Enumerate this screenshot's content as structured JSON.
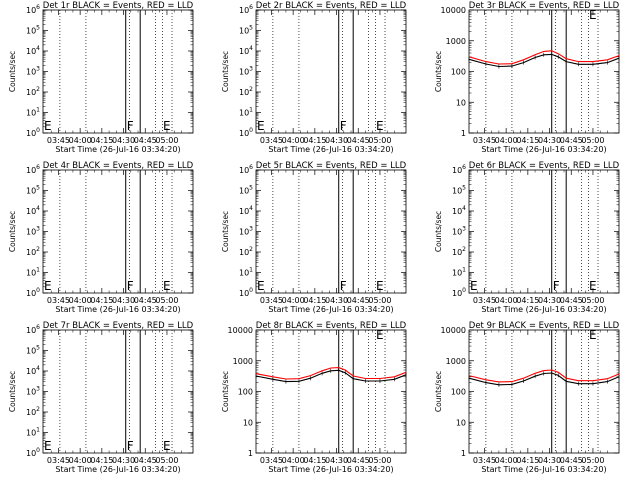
{
  "ylabel": "Counts/sec",
  "xlabel": "Start Time (26-Jul-16 03:34:20)",
  "xticks": [
    "03:45",
    "04:00",
    "04:15",
    "04:30",
    "04:45",
    "05:00"
  ],
  "xtick_minutes": [
    225,
    240,
    255,
    270,
    285,
    300
  ],
  "x_range_minutes": [
    214.33,
    318
  ],
  "flag_line_minutes": [
    271.5,
    281.5
  ],
  "dotted_line_minutes": [
    226,
    244,
    274,
    292,
    297,
    303.5
  ],
  "flag_labels": {
    "F": "F",
    "E": "E"
  },
  "flag_label_minutes": {
    "F": 271.5,
    "E": 298
  },
  "colors": {
    "events": "#000000",
    "lld": "#ff0000"
  },
  "series_names": {
    "events": "BLACK = Events",
    "lld": "RED = LLD"
  },
  "chart_data": [
    {
      "type": "line",
      "title": "Det 1r BLACK = Events, RED = LLD",
      "yscale": "log",
      "ylim": [
        1,
        1000000
      ],
      "yticks": [
        {
          "v": 1,
          "b": "10",
          "e": "0"
        },
        {
          "v": 10,
          "b": "10",
          "e": "1"
        },
        {
          "v": 100,
          "b": "10",
          "e": "2"
        },
        {
          "v": 1000,
          "b": "10",
          "e": "3"
        },
        {
          "v": 10000,
          "b": "10",
          "e": "4"
        },
        {
          "v": 100000,
          "b": "10",
          "e": "5"
        },
        {
          "v": 1000000,
          "b": "10",
          "e": "6"
        }
      ],
      "flags": [
        "E",
        "F",
        "E"
      ],
      "series": []
    },
    {
      "type": "line",
      "title": "Det 2r BLACK = Events, RED = LLD",
      "yscale": "log",
      "ylim": [
        1,
        1000000
      ],
      "yticks": [
        {
          "v": 1,
          "b": "10",
          "e": "0"
        },
        {
          "v": 10,
          "b": "10",
          "e": "1"
        },
        {
          "v": 100,
          "b": "10",
          "e": "2"
        },
        {
          "v": 1000,
          "b": "10",
          "e": "3"
        },
        {
          "v": 10000,
          "b": "10",
          "e": "4"
        },
        {
          "v": 100000,
          "b": "10",
          "e": "5"
        },
        {
          "v": 1000000,
          "b": "10",
          "e": "6"
        }
      ],
      "flags": [
        "E",
        "F",
        "E"
      ],
      "series": []
    },
    {
      "type": "line",
      "title": "Det 3r BLACK = Events, RED = LLD",
      "yscale": "log",
      "ylim": [
        1,
        10000
      ],
      "yticks": [
        {
          "v": 1,
          "t": "1"
        },
        {
          "v": 10,
          "t": "10"
        },
        {
          "v": 100,
          "t": "100"
        },
        {
          "v": 1000,
          "t": "1000"
        },
        {
          "v": 10000,
          "t": "10000"
        }
      ],
      "flags": [
        "E"
      ],
      "series": [
        {
          "key": "lld",
          "points": [
            [
              214.33,
              300
            ],
            [
              226,
              210
            ],
            [
              235,
              175
            ],
            [
              244,
              180
            ],
            [
              252,
              240
            ],
            [
              260,
              350
            ],
            [
              266,
              450
            ],
            [
              271.5,
              470
            ],
            [
              276,
              380
            ],
            [
              281.5,
              260
            ],
            [
              290,
              210
            ],
            [
              300,
              210
            ],
            [
              310,
              240
            ],
            [
              318,
              330
            ]
          ]
        },
        {
          "key": "events",
          "points": [
            [
              214.33,
              250
            ],
            [
              226,
              175
            ],
            [
              235,
              145
            ],
            [
              244,
              150
            ],
            [
              252,
              195
            ],
            [
              260,
              285
            ],
            [
              266,
              350
            ],
            [
              271.5,
              360
            ],
            [
              276,
              300
            ],
            [
              281.5,
              210
            ],
            [
              290,
              172
            ],
            [
              300,
              172
            ],
            [
              310,
              195
            ],
            [
              318,
              270
            ]
          ]
        }
      ]
    },
    {
      "type": "line",
      "title": "Det 4r BLACK = Events, RED = LLD",
      "yscale": "log",
      "ylim": [
        1,
        1000000
      ],
      "yticks": [
        {
          "v": 1,
          "b": "10",
          "e": "0"
        },
        {
          "v": 10,
          "b": "10",
          "e": "1"
        },
        {
          "v": 100,
          "b": "10",
          "e": "2"
        },
        {
          "v": 1000,
          "b": "10",
          "e": "3"
        },
        {
          "v": 10000,
          "b": "10",
          "e": "4"
        },
        {
          "v": 100000,
          "b": "10",
          "e": "5"
        },
        {
          "v": 1000000,
          "b": "10",
          "e": "6"
        }
      ],
      "flags": [
        "E",
        "F",
        "E"
      ],
      "series": []
    },
    {
      "type": "line",
      "title": "Det 5r BLACK = Events, RED = LLD",
      "yscale": "log",
      "ylim": [
        1,
        1000000
      ],
      "yticks": [
        {
          "v": 1,
          "b": "10",
          "e": "0"
        },
        {
          "v": 10,
          "b": "10",
          "e": "1"
        },
        {
          "v": 100,
          "b": "10",
          "e": "2"
        },
        {
          "v": 1000,
          "b": "10",
          "e": "3"
        },
        {
          "v": 10000,
          "b": "10",
          "e": "4"
        },
        {
          "v": 100000,
          "b": "10",
          "e": "5"
        },
        {
          "v": 1000000,
          "b": "10",
          "e": "6"
        }
      ],
      "flags": [
        "E",
        "F",
        "E"
      ],
      "series": []
    },
    {
      "type": "line",
      "title": "Det 6r BLACK = Events, RED = LLD",
      "yscale": "log",
      "ylim": [
        1,
        1000000
      ],
      "yticks": [
        {
          "v": 1,
          "b": "10",
          "e": "0"
        },
        {
          "v": 10,
          "b": "10",
          "e": "1"
        },
        {
          "v": 100,
          "b": "10",
          "e": "2"
        },
        {
          "v": 1000,
          "b": "10",
          "e": "3"
        },
        {
          "v": 10000,
          "b": "10",
          "e": "4"
        },
        {
          "v": 100000,
          "b": "10",
          "e": "5"
        },
        {
          "v": 1000000,
          "b": "10",
          "e": "6"
        }
      ],
      "flags": [
        "E",
        "F",
        "E"
      ],
      "series": []
    },
    {
      "type": "line",
      "title": "Det 7r BLACK = Events, RED = LLD",
      "yscale": "log",
      "ylim": [
        1,
        1000000
      ],
      "yticks": [
        {
          "v": 1,
          "b": "10",
          "e": "0"
        },
        {
          "v": 10,
          "b": "10",
          "e": "1"
        },
        {
          "v": 100,
          "b": "10",
          "e": "2"
        },
        {
          "v": 1000,
          "b": "10",
          "e": "3"
        },
        {
          "v": 10000,
          "b": "10",
          "e": "4"
        },
        {
          "v": 100000,
          "b": "10",
          "e": "5"
        },
        {
          "v": 1000000,
          "b": "10",
          "e": "6"
        }
      ],
      "flags": [
        "E",
        "F",
        "E"
      ],
      "series": []
    },
    {
      "type": "line",
      "title": "Det 8r BLACK = Events, RED = LLD",
      "yscale": "log",
      "ylim": [
        1,
        10000
      ],
      "yticks": [
        {
          "v": 1,
          "t": "1"
        },
        {
          "v": 10,
          "t": "10"
        },
        {
          "v": 100,
          "t": "100"
        },
        {
          "v": 1000,
          "t": "1000"
        },
        {
          "v": 10000,
          "t": "10000"
        }
      ],
      "flags": [
        "E"
      ],
      "series": [
        {
          "key": "lld",
          "points": [
            [
              214.33,
              380
            ],
            [
              226,
              300
            ],
            [
              235,
              255
            ],
            [
              244,
              260
            ],
            [
              252,
              330
            ],
            [
              260,
              470
            ],
            [
              266,
              580
            ],
            [
              271.5,
              600
            ],
            [
              276,
              500
            ],
            [
              281.5,
              320
            ],
            [
              290,
              265
            ],
            [
              300,
              265
            ],
            [
              310,
              300
            ],
            [
              318,
              420
            ]
          ]
        },
        {
          "key": "events",
          "points": [
            [
              214.33,
              320
            ],
            [
              226,
              250
            ],
            [
              235,
              210
            ],
            [
              244,
              215
            ],
            [
              252,
              270
            ],
            [
              260,
              390
            ],
            [
              266,
              470
            ],
            [
              271.5,
              490
            ],
            [
              276,
              410
            ],
            [
              281.5,
              260
            ],
            [
              290,
              220
            ],
            [
              300,
              220
            ],
            [
              310,
              250
            ],
            [
              318,
              350
            ]
          ]
        }
      ]
    },
    {
      "type": "line",
      "title": "Det 9r BLACK = Events, RED = LLD",
      "yscale": "log",
      "ylim": [
        1,
        10000
      ],
      "yticks": [
        {
          "v": 1,
          "t": "1"
        },
        {
          "v": 10,
          "t": "10"
        },
        {
          "v": 100,
          "t": "100"
        },
        {
          "v": 1000,
          "t": "1000"
        },
        {
          "v": 10000,
          "t": "10000"
        }
      ],
      "flags": [
        "E"
      ],
      "series": [
        {
          "key": "lld",
          "points": [
            [
              214.33,
              330
            ],
            [
              226,
              240
            ],
            [
              235,
              205
            ],
            [
              244,
              210
            ],
            [
              252,
              270
            ],
            [
              260,
              390
            ],
            [
              266,
              480
            ],
            [
              271.5,
              500
            ],
            [
              276,
              420
            ],
            [
              281.5,
              270
            ],
            [
              290,
              225
            ],
            [
              300,
              225
            ],
            [
              310,
              260
            ],
            [
              318,
              370
            ]
          ]
        },
        {
          "key": "events",
          "points": [
            [
              214.33,
              270
            ],
            [
              226,
              195
            ],
            [
              235,
              165
            ],
            [
              244,
              170
            ],
            [
              252,
              220
            ],
            [
              260,
              315
            ],
            [
              266,
              385
            ],
            [
              271.5,
              400
            ],
            [
              276,
              335
            ],
            [
              281.5,
              215
            ],
            [
              290,
              180
            ],
            [
              300,
              180
            ],
            [
              310,
              210
            ],
            [
              318,
              300
            ]
          ]
        }
      ]
    }
  ]
}
